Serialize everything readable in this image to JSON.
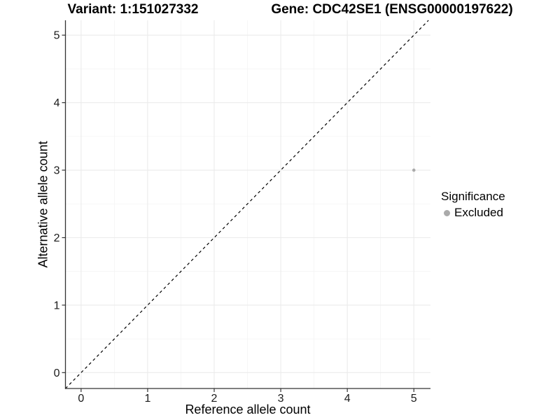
{
  "figure": {
    "title_left": "Variant: 1:151027332",
    "title_right": "Gene: CDC42SE1 (ENSG00000197622)"
  },
  "legend": {
    "title": "Significance",
    "items": [
      {
        "label": "Excluded",
        "color": "#aaaaaa"
      }
    ]
  },
  "chart_data": {
    "type": "scatter",
    "title_left": "Variant: 1:151027332",
    "title_right": "Gene: CDC42SE1 (ENSG00000197622)",
    "xlabel": "Reference allele count",
    "ylabel": "Alternative allele count",
    "xlim": [
      -0.235,
      5.25
    ],
    "ylim": [
      -0.235,
      5.22
    ],
    "x_ticks": [
      0,
      1,
      2,
      3,
      4,
      5
    ],
    "y_ticks": [
      0,
      1,
      2,
      3,
      4,
      5
    ],
    "x_minor_ticks": [
      0.5,
      1.5,
      2.5,
      3.5,
      4.5
    ],
    "y_minor_ticks": [
      0.5,
      1.5,
      2.5,
      3.5,
      4.5
    ],
    "grid": true,
    "legend_position": "right",
    "identity_line": {
      "show": true,
      "style": "dashed",
      "color": "#000000",
      "slope": 1,
      "intercept": 0
    },
    "series": [
      {
        "name": "Excluded",
        "color": "#aaaaaa",
        "points": [
          {
            "x": 5,
            "y": 3
          }
        ]
      }
    ],
    "colors": {
      "point_excluded": "#aaaaaa",
      "grid_major": "#ebebeb",
      "grid_minor": "#f4f4f4",
      "axis_line": "#333333",
      "tick_text": "#1a1a1a",
      "background": "#ffffff"
    }
  }
}
